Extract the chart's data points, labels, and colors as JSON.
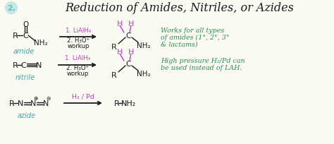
{
  "bg_color": "#fafaf2",
  "title_number": "2.",
  "title_number_color": "#5bbfb5",
  "title_number_bg": "#c8e8e4",
  "title_text": "Reduction of Amides, Nitriles, or Azides",
  "title_color": "#1a1a1a",
  "title_fontsize": 11.5,
  "row1_reactant": "amide",
  "row1_reagent1": "1. LiAlH₄",
  "row1_reagent2": "2. H₃O⁺",
  "row1_reagent3": "workup",
  "row2_reactant": "nitrile",
  "row2_reagent1": "1. LiAlH₄",
  "row2_reagent2": "2. H₃O⁺",
  "row2_reagent3": "workup",
  "row3_reactant": "azide",
  "row3_reagent": "H₂ / Pd",
  "note1_line1": "Works for all types",
  "note1_line2": "of amides (1°, 2°, 3°",
  "note1_line3": "& lactams)",
  "note2_line1": "High pressure H₂/Pd can",
  "note2_line2": "be used instead of LAH.",
  "black": "#1a1a1a",
  "purple": "#b040c0",
  "teal": "#3aacaa",
  "green": "#2d8c50"
}
